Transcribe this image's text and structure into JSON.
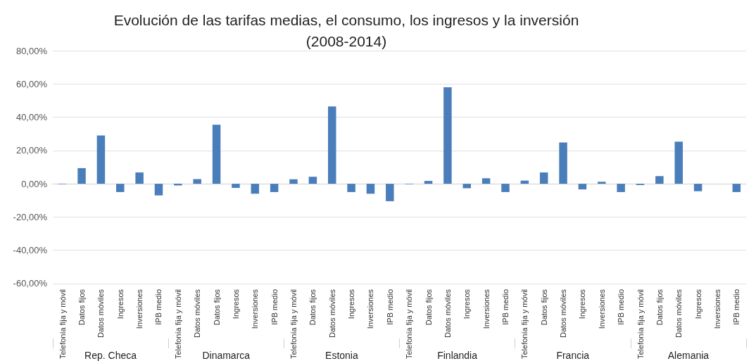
{
  "chart_data": {
    "type": "bar",
    "title": "Evolución de las tarifas medias, el consumo, los ingresos y la inversión\n(2008-2014)",
    "categories": [
      "Telefonía fija y móvil",
      "Datos fijos",
      "Datos móviles",
      "Ingresos",
      "Inversiones",
      "IPB medio",
      "Telefonía fija y móvil",
      "Datos móviles",
      "Datos fijos",
      "Ingresos",
      "Inversiones",
      "IPB medio",
      "Telefonía fija y móvil",
      "Datos fijos",
      "Datos móviles",
      "Ingresos",
      "Inversiones",
      "IPB medio",
      "Telefonía fija y móvil",
      "Datos fijos",
      "Datos móviles",
      "Ingresos",
      "Inversiones",
      "IPB medio",
      "Telefonía fija y móvil",
      "Datos fijos",
      "Datos móviles",
      "Ingresos",
      "Inversiones",
      "IPB medio",
      "Telefonía fija y móvil",
      "Datos fijos",
      "Datos móviles",
      "Ingresos",
      "Inversiones",
      "IPB medio"
    ],
    "values": [
      -0.3,
      9.4,
      29,
      -5,
      6.8,
      -7,
      -1,
      2.8,
      35.5,
      -2.5,
      -6,
      -5,
      2.7,
      4.2,
      46.5,
      -5,
      -6,
      -10.5,
      -0.3,
      1.7,
      58,
      -2.7,
      3.3,
      -5,
      1.9,
      6.8,
      24.8,
      -3.4,
      1.2,
      -5,
      -0.8,
      4.6,
      25.3,
      -4.5,
      0,
      -5
    ],
    "color": "#4a7ebb",
    "ylim": [
      -60,
      80
    ],
    "yticks": [
      {
        "value": -60,
        "label": "-60,00%"
      },
      {
        "value": -40,
        "label": "-40,00%"
      },
      {
        "value": -20,
        "label": "-20,00%"
      },
      {
        "value": 0,
        "label": "0,00%"
      },
      {
        "value": 20,
        "label": "20,00%"
      },
      {
        "value": 40,
        "label": "40,00%"
      },
      {
        "value": 60,
        "label": "60,00%"
      },
      {
        "value": 80,
        "label": "80,00%"
      }
    ],
    "grid": "y",
    "annotations": [
      "Rep. Checa",
      "Dinamarca",
      "Estonia",
      "Finlandia",
      "Francia",
      "Alemania"
    ]
  }
}
